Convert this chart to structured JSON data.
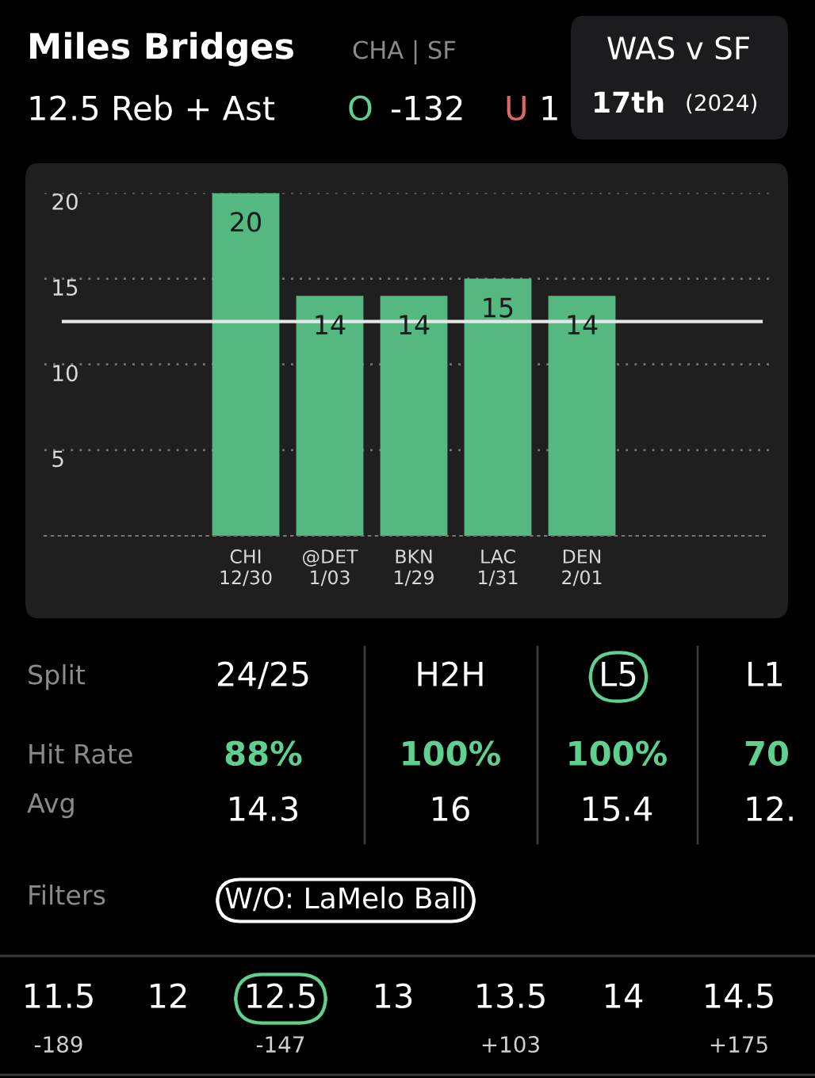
{
  "chart_data": {
    "type": "bar",
    "title": "Miles Bridges",
    "subtitle": "CHA | SF",
    "categories": [
      "CHI\n12/30",
      "@DET\n1/03",
      "BKN\n1/29",
      "LAC\n1/31",
      "DEN\n2/01"
    ],
    "values": [
      20,
      14,
      14,
      15,
      14
    ],
    "color": "#54b880",
    "ylim": [
      0,
      20
    ],
    "yticks": [
      5,
      10,
      15,
      20
    ],
    "grid": "y",
    "data_labels": true,
    "ref_lines": [
      {
        "axis": "y",
        "value": 12.5,
        "color": "#e6e6e6"
      }
    ],
    "annotations": [
      "12.5 Reb + Ast",
      "O",
      "-132",
      "U",
      "1",
      "WAS v SF",
      "17th",
      "(2024)",
      "Split",
      "24/25",
      "H2H",
      "L5",
      "L1",
      "Hit Rate",
      "88%",
      "100%",
      "100%",
      "70",
      "Avg",
      "14.3",
      "16",
      "15.4",
      "12.",
      "Filters",
      "W/O: LaMelo Ball",
      "11.5",
      "-189",
      "12",
      "12.5",
      "-147",
      "13",
      "13.5",
      "+103",
      "14",
      "14.5",
      "+175"
    ]
  }
}
